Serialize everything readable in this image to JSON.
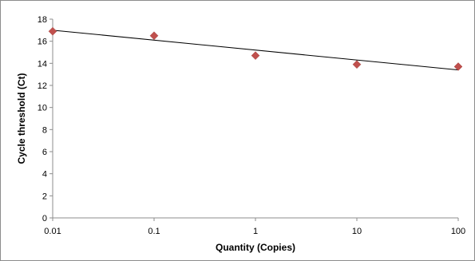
{
  "chart_data": {
    "type": "scatter",
    "title": "",
    "xlabel": "Quantity (Copies)",
    "ylabel": "Cycle threshold (Ct)",
    "x_scale": "log",
    "xlim": [
      0.01,
      100
    ],
    "ylim": [
      0,
      18
    ],
    "x_ticks": [
      "0.01",
      "0.1",
      "1",
      "10",
      "100"
    ],
    "x_tick_values": [
      0.01,
      0.1,
      1,
      10,
      100
    ],
    "y_ticks": [
      "0",
      "2",
      "4",
      "6",
      "8",
      "10",
      "12",
      "14",
      "16",
      "18"
    ],
    "y_tick_values": [
      0,
      2,
      4,
      6,
      8,
      10,
      12,
      14,
      16,
      18
    ],
    "grid": false,
    "legend": "none",
    "series": [
      {
        "marker": "diamond",
        "color": "#c0504d",
        "points": [
          {
            "x": 0.01,
            "y": 16.9
          },
          {
            "x": 0.1,
            "y": 16.5
          },
          {
            "x": 1,
            "y": 14.7
          },
          {
            "x": 10,
            "y": 13.9
          },
          {
            "x": 100,
            "y": 13.7
          }
        ]
      }
    ],
    "trendline": {
      "type": "linear-log",
      "color": "#000000",
      "start": {
        "x": 0.01,
        "y": 17.0
      },
      "end": {
        "x": 100,
        "y": 13.4
      }
    }
  }
}
